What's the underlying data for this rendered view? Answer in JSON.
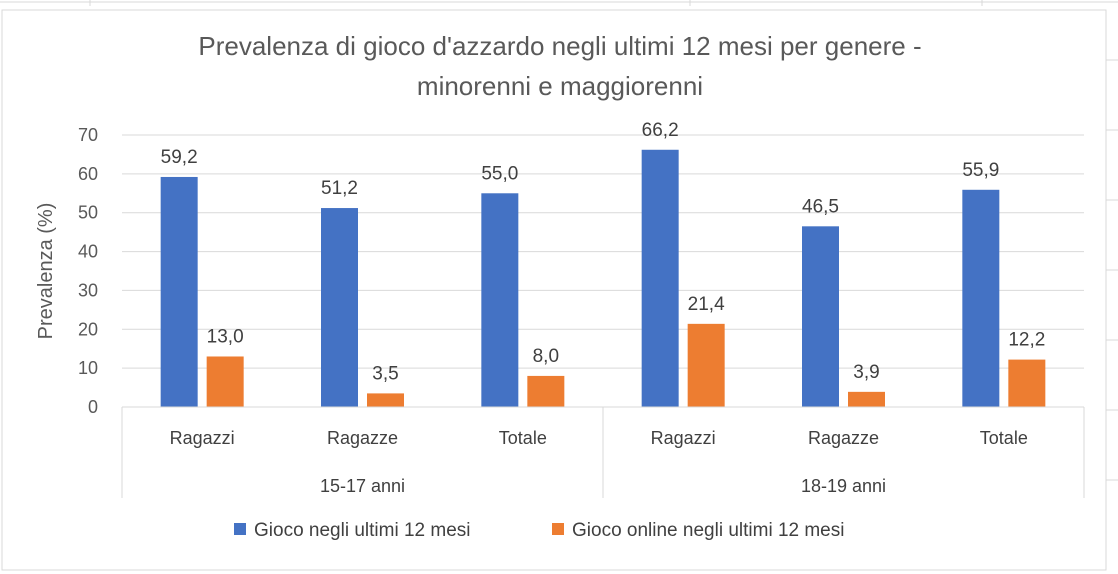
{
  "chart_data": {
    "type": "bar",
    "title_lines": [
      "Prevalenza di gioco d'azzardo negli ultimi 12 mesi per genere -",
      "minorenni e maggiorenni"
    ],
    "ylabel": "Prevalenza (%)",
    "ylim": [
      0,
      70
    ],
    "yticks": [
      0,
      10,
      20,
      30,
      40,
      50,
      60,
      70
    ],
    "grid": true,
    "legend_position": "bottom",
    "groups": [
      {
        "label": "15-17 anni",
        "categories": [
          "Ragazzi",
          "Ragazze",
          "Totale"
        ]
      },
      {
        "label": "18-19 anni",
        "categories": [
          "Ragazzi",
          "Ragazze",
          "Totale"
        ]
      }
    ],
    "categories": [
      "Ragazzi",
      "Ragazze",
      "Totale",
      "Ragazzi",
      "Ragazze",
      "Totale"
    ],
    "series": [
      {
        "name": "Gioco negli ultimi 12 mesi",
        "color": "#4472C4",
        "values": [
          59.2,
          51.2,
          55.0,
          66.2,
          46.5,
          55.9
        ],
        "labels": [
          "59,2",
          "51,2",
          "55,0",
          "66,2",
          "46,5",
          "55,9"
        ]
      },
      {
        "name": "Gioco online negli ultimi 12 mesi",
        "color": "#ED7D31",
        "values": [
          13.0,
          3.5,
          8.0,
          21.4,
          3.9,
          12.2
        ],
        "labels": [
          "13,0",
          "3,5",
          "8,0",
          "21,4",
          "3,9",
          "12,2"
        ]
      }
    ]
  }
}
